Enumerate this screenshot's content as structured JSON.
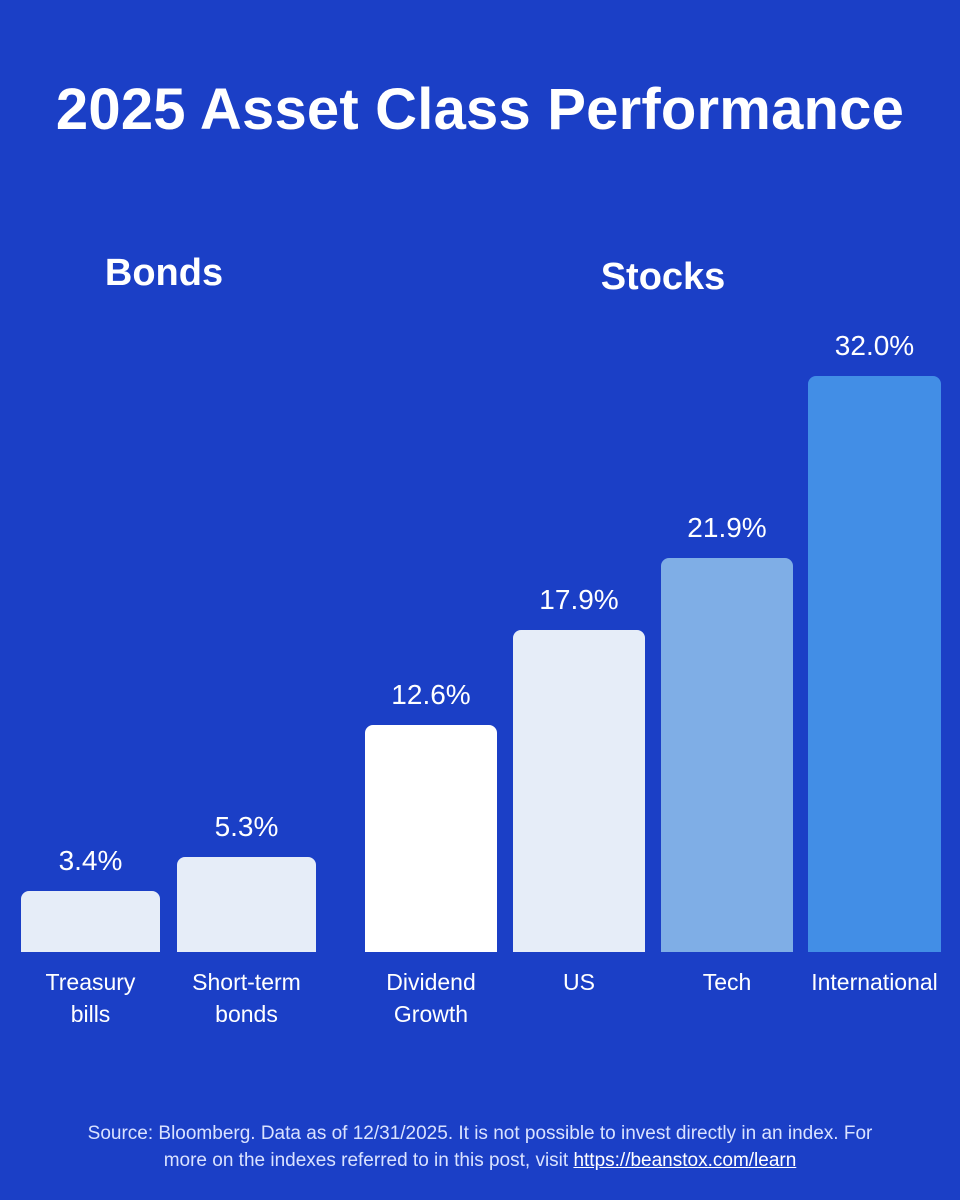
{
  "title": "2025 Asset Class Performance",
  "groups": {
    "bonds_label": "Bonds",
    "stocks_label": "Stocks"
  },
  "chart_data": {
    "type": "bar",
    "title": "2025 Asset Class Performance",
    "xlabel": "",
    "ylabel": "",
    "grid": false,
    "groups": [
      {
        "name": "Bonds",
        "categories": [
          "Treasury bills",
          "Short-term bonds"
        ]
      },
      {
        "name": "Stocks",
        "categories": [
          "Dividend Growth",
          "US",
          "Tech",
          "International"
        ]
      }
    ],
    "categories": [
      "Treasury\nbills",
      "Short-term\nbonds",
      "Dividend\nGrowth",
      "US",
      "Tech",
      "International"
    ],
    "values": [
      3.4,
      5.3,
      12.6,
      17.9,
      21.9,
      32.0
    ],
    "value_labels": [
      "3.4%",
      "5.3%",
      "12.6%",
      "17.9%",
      "21.9%",
      "32.0%"
    ],
    "colors": [
      "#e6edf8",
      "#e6edf8",
      "#ffffff",
      "#e6edf8",
      "#7faee6",
      "#428ee6"
    ],
    "ylim": [
      0,
      32
    ]
  },
  "footer": {
    "line1": "Source: Bloomberg. Data as of 12/31/2025. It is not possible to invest directly in an index. For",
    "line2_prefix": "more on the indexes referred to in this post, visit ",
    "link": "https://beanstox.com/learn"
  }
}
